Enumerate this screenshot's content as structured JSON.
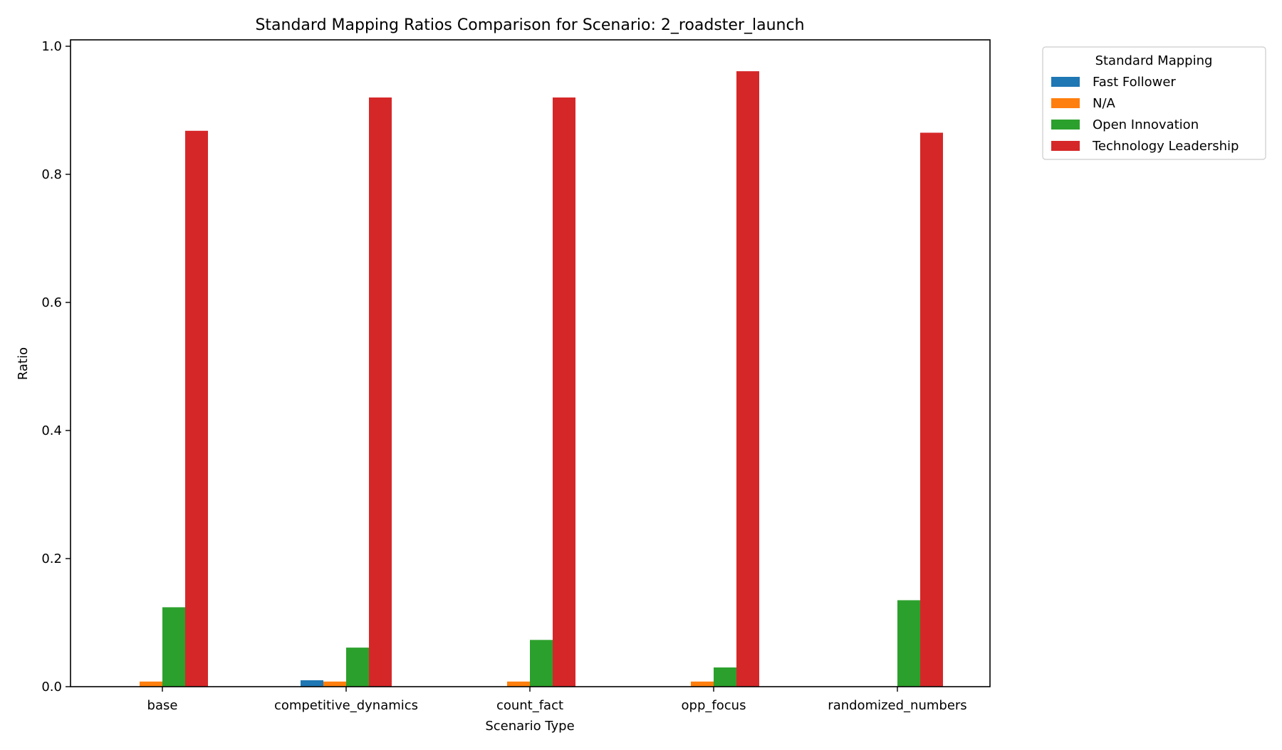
{
  "chart_data": {
    "type": "bar",
    "title": "Standard Mapping Ratios Comparison for Scenario: 2_roadster_launch",
    "xlabel": "Scenario Type",
    "ylabel": "Ratio",
    "categories": [
      "base",
      "competitive_dynamics",
      "count_fact",
      "opp_focus",
      "randomized_numbers"
    ],
    "ylim": [
      0,
      1.01
    ],
    "yticks": [
      0.0,
      0.2,
      0.4,
      0.6,
      0.8,
      1.0
    ],
    "ytick_labels": [
      "0.0",
      "0.2",
      "0.4",
      "0.6",
      "0.8",
      "1.0"
    ],
    "grid": false,
    "legend": {
      "title": "Standard Mapping",
      "placement": "outside top-right"
    },
    "series": [
      {
        "name": "Fast Follower",
        "color": "#1f77b4",
        "values": [
          0,
          0.01,
          0,
          0,
          0
        ]
      },
      {
        "name": "N/A",
        "color": "#ff7f0e",
        "values": [
          0.008,
          0.008,
          0.008,
          0.008,
          0
        ]
      },
      {
        "name": "Open Innovation",
        "color": "#2ca02c",
        "values": [
          0.124,
          0.061,
          0.073,
          0.03,
          0.135
        ]
      },
      {
        "name": "Technology Leadership",
        "color": "#d62728",
        "values": [
          0.868,
          0.92,
          0.92,
          0.961,
          0.865
        ]
      }
    ]
  }
}
